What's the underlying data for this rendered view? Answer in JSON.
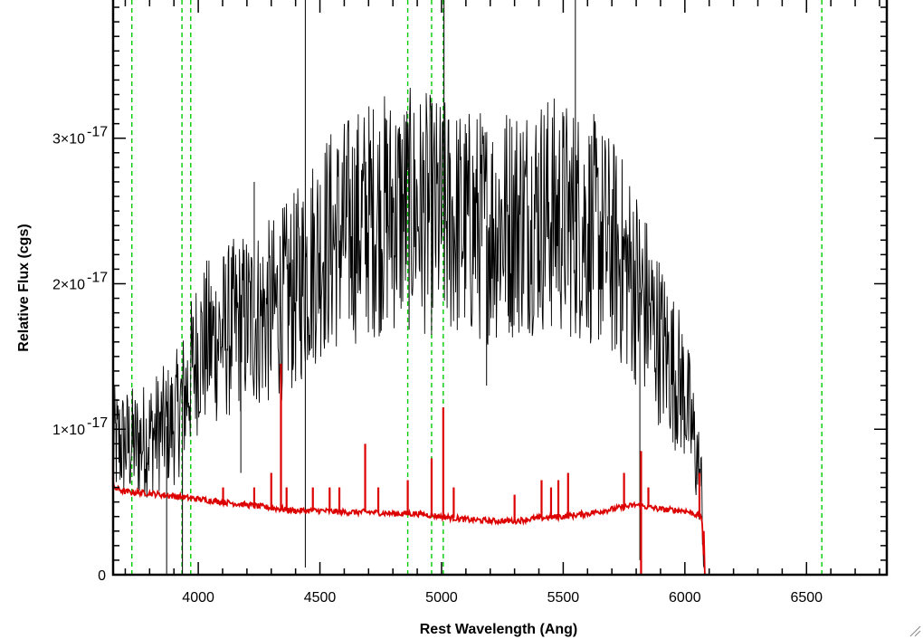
{
  "chart_data": {
    "type": "line",
    "title": "",
    "xlabel": "Rest Wavelength (Ang)",
    "ylabel": "Relative Flux (cgs)",
    "xlim": [
      3650,
      6830
    ],
    "ylim": [
      0,
      3.95e-17
    ],
    "x_ticks": [
      {
        "value": 4000,
        "label": "4000"
      },
      {
        "value": 4500,
        "label": "4500"
      },
      {
        "value": 5000,
        "label": "5000"
      },
      {
        "value": 5500,
        "label": "5500"
      },
      {
        "value": 6000,
        "label": "6000"
      },
      {
        "value": 6500,
        "label": "6500"
      }
    ],
    "y_ticks": [
      {
        "value": 0,
        "base": "0",
        "exp": ""
      },
      {
        "value": 1e-17,
        "base": "1×10",
        "exp": "-17"
      },
      {
        "value": 2e-17,
        "base": "2×10",
        "exp": "-17"
      },
      {
        "value": 3e-17,
        "base": "3×10",
        "exp": "-17"
      }
    ],
    "grid": false,
    "series": [
      {
        "color": "#000000",
        "style": "solid",
        "points": [
          [
            3650,
            9e-18
          ],
          [
            3700,
            9e-18
          ],
          [
            3750,
            9e-18
          ],
          [
            3800,
            9.5e-18
          ],
          [
            3850,
            1e-17
          ],
          [
            3900,
            1.05e-17
          ],
          [
            3950,
            1.25e-17
          ],
          [
            4000,
            1.55e-17
          ],
          [
            4050,
            1.6e-17
          ],
          [
            4100,
            1.65e-17
          ],
          [
            4200,
            1.75e-17
          ],
          [
            4300,
            1.8e-17
          ],
          [
            4400,
            1.95e-17
          ],
          [
            4500,
            2.25e-17
          ],
          [
            4600,
            2.35e-17
          ],
          [
            4700,
            2.45e-17
          ],
          [
            4800,
            2.5e-17
          ],
          [
            4900,
            2.5e-17
          ],
          [
            5000,
            2.45e-17
          ],
          [
            5100,
            2.4e-17
          ],
          [
            5200,
            2.4e-17
          ],
          [
            5300,
            2.45e-17
          ],
          [
            5400,
            2.5e-17
          ],
          [
            5500,
            2.45e-17
          ],
          [
            5600,
            2.4e-17
          ],
          [
            5700,
            2.25e-17
          ],
          [
            5800,
            2e-17
          ],
          [
            5900,
            1.6e-17
          ],
          [
            6000,
            1.25e-17
          ],
          [
            6050,
            8e-18
          ],
          [
            6070,
            5.5e-18
          ],
          [
            6080,
            0.0
          ]
        ],
        "spikes": [
          [
            4440,
            4e-17
          ],
          [
            4440,
            5e-19
          ],
          [
            5010,
            4e-17
          ],
          [
            5550,
            3.95e-17
          ],
          [
            4230,
            2.7e-17
          ],
          [
            4175,
            7e-18
          ],
          [
            5185,
            1.3e-17
          ],
          [
            3870,
            0.0
          ],
          [
            3935,
            0.0
          ],
          [
            5815,
            1e-18
          ]
        ]
      },
      {
        "color": "#dd0000",
        "style": "solid",
        "points": [
          [
            3650,
            6e-18
          ],
          [
            3700,
            5.7e-18
          ],
          [
            3800,
            5.6e-18
          ],
          [
            3900,
            5.4e-18
          ],
          [
            4000,
            5.2e-18
          ],
          [
            4100,
            5e-18
          ],
          [
            4200,
            4.8e-18
          ],
          [
            4300,
            4.6e-18
          ],
          [
            4400,
            4.4e-18
          ],
          [
            4500,
            4.4e-18
          ],
          [
            4600,
            4.3e-18
          ],
          [
            4700,
            4.3e-18
          ],
          [
            4800,
            4.2e-18
          ],
          [
            4900,
            4.2e-18
          ],
          [
            5000,
            4e-18
          ],
          [
            5100,
            3.8e-18
          ],
          [
            5200,
            3.7e-18
          ],
          [
            5300,
            3.7e-18
          ],
          [
            5400,
            3.9e-18
          ],
          [
            5500,
            4e-18
          ],
          [
            5600,
            4.2e-18
          ],
          [
            5700,
            4.5e-18
          ],
          [
            5800,
            4.8e-18
          ],
          [
            5900,
            4.5e-18
          ],
          [
            6000,
            4.4e-18
          ],
          [
            6070,
            4e-18
          ],
          [
            6080,
            0.0
          ],
          [
            6830,
            0.0
          ]
        ],
        "emission_lines": [
          [
            3650,
            8e-18
          ],
          [
            4102,
            6e-18
          ],
          [
            4230,
            6e-18
          ],
          [
            4300,
            7e-18
          ],
          [
            4340,
            1.45e-17
          ],
          [
            4363,
            6e-18
          ],
          [
            4471,
            6e-18
          ],
          [
            4540,
            6e-18
          ],
          [
            4580,
            6e-18
          ],
          [
            4686,
            9e-18
          ],
          [
            4740,
            6e-18
          ],
          [
            4861,
            6.5e-18
          ],
          [
            4959,
            8e-18
          ],
          [
            5007,
            1.15e-17
          ],
          [
            5050,
            6e-18
          ],
          [
            5300,
            5.5e-18
          ],
          [
            5411,
            6.5e-18
          ],
          [
            5450,
            6e-18
          ],
          [
            5480,
            6.5e-18
          ],
          [
            5520,
            7e-18
          ],
          [
            5750,
            7e-18
          ],
          [
            5820,
            8.5e-18
          ],
          [
            5820,
            0.0
          ],
          [
            5850,
            6e-18
          ],
          [
            6060,
            7e-18
          ]
        ]
      }
    ],
    "vlines": {
      "color": "#00cc00",
      "style": "dashed",
      "x": [
        3727,
        3933,
        3969,
        4861,
        4959,
        5007,
        6563
      ]
    }
  }
}
